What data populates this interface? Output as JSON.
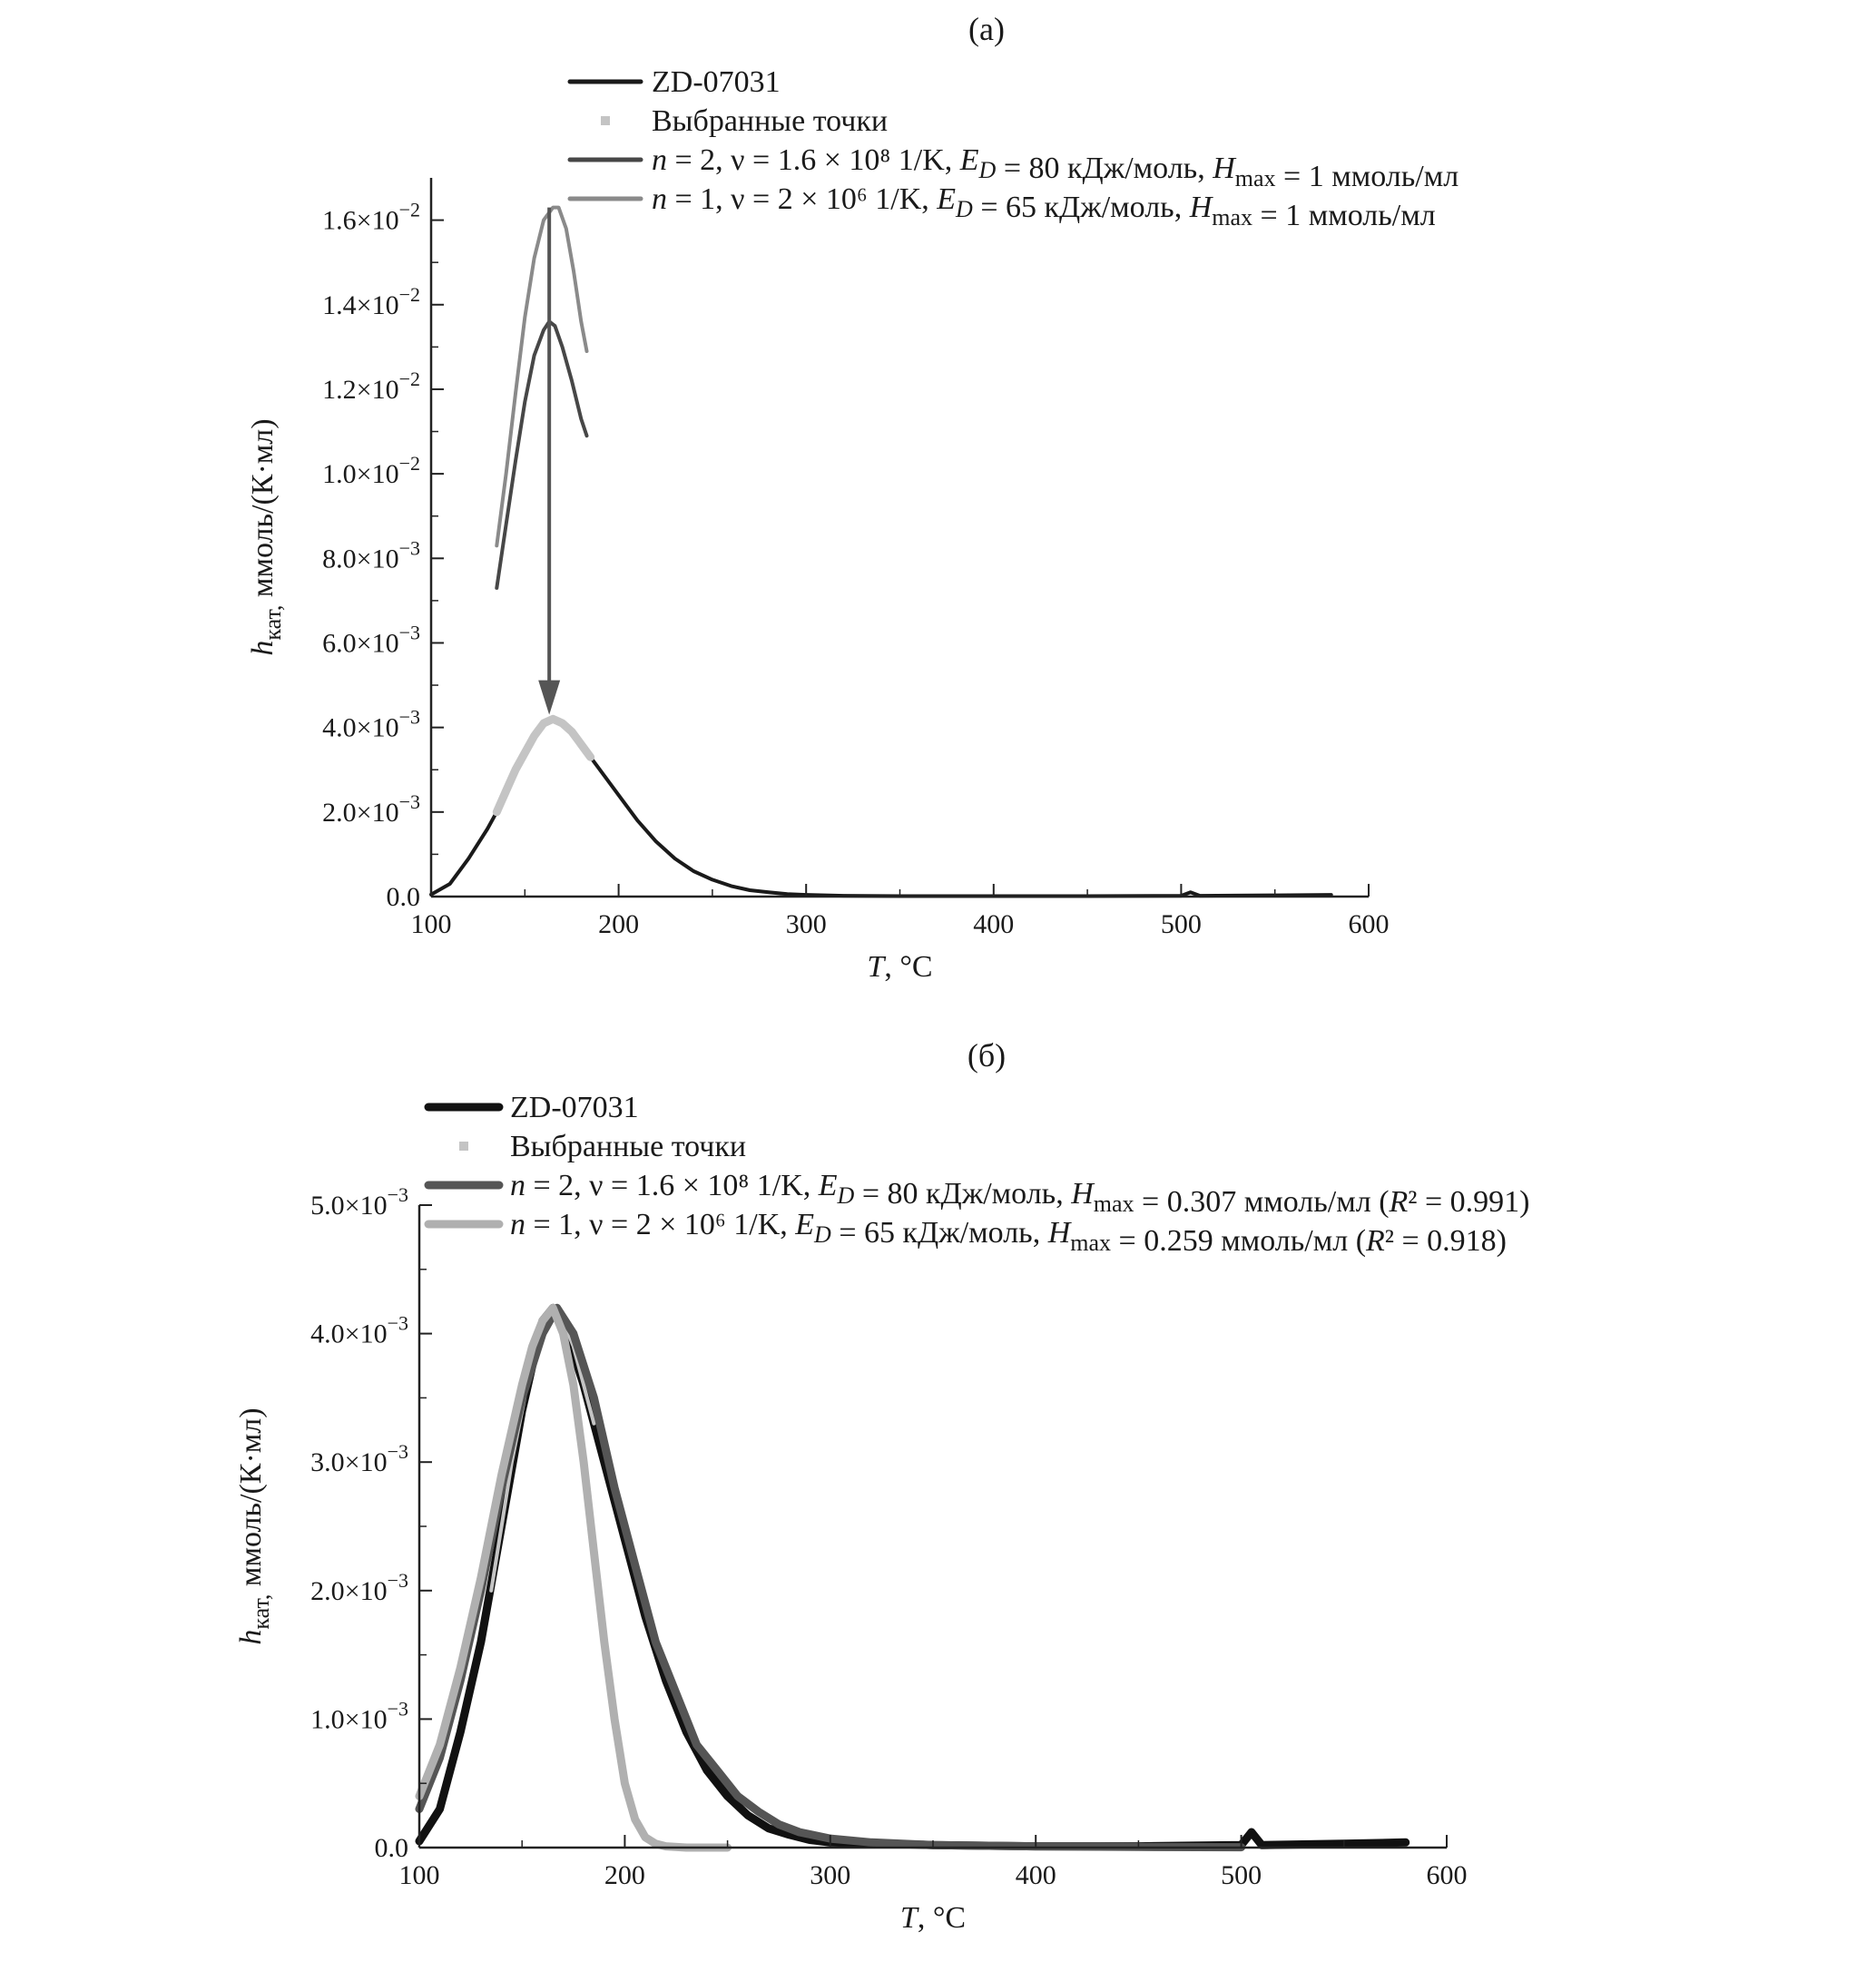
{
  "chart_data": [
    {
      "type": "line",
      "panel_label": "(а)",
      "xlabel": "T, °C",
      "ylabel": "h_кат, ммоль/(К·мл)",
      "xlim": [
        100,
        600
      ],
      "ylim": [
        0,
        0.017
      ],
      "x_ticks": [
        100,
        200,
        300,
        400,
        500,
        600
      ],
      "x_tick_labels": [
        "100",
        "200",
        "300",
        "400",
        "500",
        "600"
      ],
      "y_ticks": [
        0,
        0.002,
        0.004,
        0.006,
        0.008,
        0.01,
        0.012,
        0.014,
        0.016
      ],
      "y_tick_labels": [
        "0.0",
        "2.0×10⁻³",
        "4.0×10⁻³",
        "6.0×10⁻³",
        "8.0×10⁻³",
        "1.0×10⁻²",
        "1.2×10⁻²",
        "1.4×10⁻²",
        "1.6×10⁻²"
      ],
      "legend_position": "top",
      "grid": false,
      "series": [
        {
          "name": "ZD-07031",
          "color": "#1a1a1a",
          "style": "line",
          "x": [
            100,
            110,
            120,
            130,
            135,
            140,
            150,
            160,
            165,
            170,
            180,
            185,
            190,
            200,
            210,
            220,
            230,
            240,
            250,
            260,
            270,
            280,
            290,
            300,
            320,
            350,
            400,
            450,
            500,
            505,
            510,
            550,
            580
          ],
          "y": [
            5e-05,
            0.0003,
            0.0009,
            0.0016,
            0.002,
            0.0025,
            0.0034,
            0.0041,
            0.0042,
            0.0041,
            0.0036,
            0.0033,
            0.003,
            0.0024,
            0.0018,
            0.0013,
            0.0009,
            0.0006,
            0.0004,
            0.00025,
            0.00015,
            0.0001,
            6e-05,
            4e-05,
            2e-05,
            1e-05,
            1e-05,
            1e-05,
            2e-05,
            0.0001,
            2e-05,
            3e-05,
            4e-05
          ]
        },
        {
          "name": "Выбранные точки",
          "color": "#c4c4c4",
          "style": "thick",
          "x": [
            135,
            140,
            145,
            150,
            155,
            160,
            165,
            170,
            175,
            180,
            185
          ],
          "y": [
            0.002,
            0.0025,
            0.003,
            0.0034,
            0.0038,
            0.0041,
            0.0042,
            0.0041,
            0.0039,
            0.0036,
            0.0033
          ]
        },
        {
          "name": "n = 2, ν = 1.6 × 10⁸ 1/K, E_D = 80 кДж/моль, H_max = 1 ммоль/мл",
          "color": "#474747",
          "style": "line",
          "x": [
            135,
            140,
            145,
            150,
            155,
            160,
            163,
            166,
            170,
            175,
            180,
            183
          ],
          "y": [
            0.0073,
            0.0088,
            0.0103,
            0.0117,
            0.0128,
            0.0134,
            0.0136,
            0.0135,
            0.013,
            0.0122,
            0.0113,
            0.0109
          ]
        },
        {
          "name": "n = 1, ν = 2 × 10⁶ 1/K, E_D = 65 кДж/моль, H_max = 1 ммоль/мл",
          "color": "#8a8a8a",
          "style": "line",
          "x": [
            135,
            140,
            145,
            150,
            155,
            160,
            165,
            168,
            172,
            176,
            180,
            183
          ],
          "y": [
            0.0083,
            0.01,
            0.0119,
            0.0137,
            0.0151,
            0.016,
            0.0163,
            0.0163,
            0.0158,
            0.0148,
            0.0136,
            0.0129
          ]
        }
      ],
      "annotations": [
        {
          "type": "arrow",
          "from": [
            163,
            0.0163
          ],
          "to": [
            163,
            0.0043
          ],
          "color": "#555555"
        }
      ]
    },
    {
      "type": "line",
      "panel_label": "(б)",
      "xlabel": "T, °C",
      "ylabel": "h_кат, ммоль/(К·мл)",
      "xlim": [
        100,
        600
      ],
      "ylim": [
        0,
        0.005
      ],
      "x_ticks": [
        100,
        200,
        300,
        400,
        500,
        600
      ],
      "x_tick_labels": [
        "100",
        "200",
        "300",
        "400",
        "500",
        "600"
      ],
      "y_ticks": [
        0,
        0.001,
        0.002,
        0.003,
        0.004,
        0.005
      ],
      "y_tick_labels": [
        "0.0",
        "1.0×10⁻³",
        "2.0×10⁻³",
        "3.0×10⁻³",
        "4.0×10⁻³",
        "5.0×10⁻³"
      ],
      "legend_position": "top-left",
      "grid": false,
      "series": [
        {
          "name": "ZD-07031",
          "color": "#111111",
          "style": "thick",
          "x": [
            100,
            110,
            120,
            130,
            140,
            150,
            160,
            165,
            170,
            180,
            190,
            200,
            210,
            220,
            230,
            240,
            250,
            260,
            270,
            280,
            290,
            300,
            350,
            400,
            450,
            500,
            505,
            510,
            550,
            580
          ],
          "y": [
            5e-05,
            0.0003,
            0.0009,
            0.0016,
            0.0025,
            0.0034,
            0.0041,
            0.0042,
            0.0041,
            0.0036,
            0.003,
            0.0024,
            0.0018,
            0.0013,
            0.0009,
            0.0006,
            0.0004,
            0.00025,
            0.00015,
            0.0001,
            6e-05,
            4e-05,
            2e-05,
            1e-05,
            1e-05,
            2e-05,
            0.00012,
            2e-05,
            3e-05,
            4e-05
          ]
        },
        {
          "name": "Выбранные точки",
          "color": "#c4c4c4",
          "style": "thin",
          "x": [
            135,
            140,
            145,
            150,
            155,
            160,
            165,
            170,
            175,
            180,
            185
          ],
          "y": [
            0.002,
            0.0025,
            0.003,
            0.0034,
            0.0038,
            0.0041,
            0.0042,
            0.0041,
            0.0039,
            0.0036,
            0.0033
          ]
        },
        {
          "name": "n = 2, ν = 1.6 × 10⁸ 1/K, E_D = 80 кДж/моль, H_max = 0.307 ммоль/мл (R² = 0.991)",
          "color": "#555555",
          "style": "thick",
          "x": [
            100,
            110,
            120,
            130,
            140,
            150,
            160,
            167,
            175,
            185,
            195,
            205,
            215,
            225,
            235,
            245,
            255,
            265,
            275,
            285,
            300,
            320,
            350,
            400,
            450,
            500
          ],
          "y": [
            0.0003,
            0.0007,
            0.0013,
            0.002,
            0.0028,
            0.0035,
            0.004,
            0.0042,
            0.004,
            0.0035,
            0.0028,
            0.0022,
            0.0016,
            0.0012,
            0.0008,
            0.0006,
            0.0004,
            0.00028,
            0.00018,
            0.00012,
            7e-05,
            4e-05,
            2e-05,
            1e-05,
            5e-06,
            3e-06
          ]
        },
        {
          "name": "n = 1, ν = 2 × 10⁶ 1/K, E_D = 65 кДж/моль, H_max = 0.259 ммоль/мл (R² = 0.918)",
          "color": "#b0b0b0",
          "style": "thick",
          "x": [
            100,
            110,
            120,
            130,
            140,
            150,
            155,
            160,
            165,
            170,
            175,
            180,
            185,
            190,
            195,
            200,
            205,
            210,
            215,
            220,
            230,
            250
          ],
          "y": [
            0.0004,
            0.0008,
            0.0014,
            0.0021,
            0.0029,
            0.0036,
            0.0039,
            0.0041,
            0.0042,
            0.004,
            0.0036,
            0.003,
            0.0023,
            0.0016,
            0.001,
            0.0005,
            0.00022,
            8e-05,
            3e-05,
            1e-05,
            0.0,
            0.0
          ]
        }
      ]
    }
  ]
}
